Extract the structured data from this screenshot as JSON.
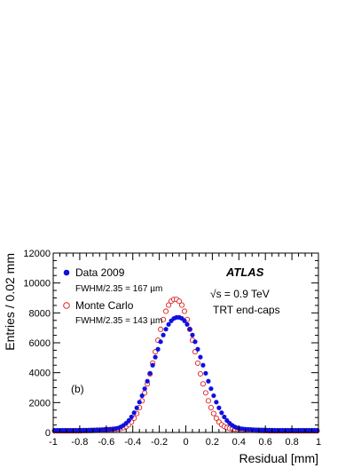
{
  "chart_data": {
    "type": "scatter",
    "title": "",
    "xlabel": "Residual [mm]",
    "ylabel": "Entries / 0.02 mm",
    "xlim": [
      -1,
      1
    ],
    "ylim": [
      0,
      12000
    ],
    "x_ticks": [
      -1,
      -0.8,
      -0.6,
      -0.4,
      -0.2,
      0,
      0.2,
      0.4,
      0.6,
      0.8,
      1
    ],
    "x_tick_labels": [
      "-1",
      "-0.8",
      "-0.6",
      "-0.4",
      "-0.2",
      "0",
      "0.2",
      "0.4",
      "0.6",
      "0.8",
      "1"
    ],
    "y_ticks": [
      0,
      2000,
      4000,
      6000,
      8000,
      10000,
      12000
    ],
    "y_tick_labels": [
      "0",
      "2000",
      "4000",
      "6000",
      "8000",
      "10000",
      "12000"
    ],
    "grid": false,
    "legend_position": "top-left",
    "bin_width": 0.02,
    "series": [
      {
        "name": "Data 2009",
        "annotation": "FWHM/2.35 = 167 µm",
        "marker": "filled-circle",
        "color": "#1010e0",
        "x": [
          -0.99,
          -0.97,
          -0.95,
          -0.93,
          -0.91,
          -0.89,
          -0.87,
          -0.85,
          -0.83,
          -0.81,
          -0.79,
          -0.77,
          -0.75,
          -0.73,
          -0.71,
          -0.69,
          -0.67,
          -0.65,
          -0.63,
          -0.61,
          -0.59,
          -0.57,
          -0.55,
          -0.53,
          -0.51,
          -0.49,
          -0.47,
          -0.45,
          -0.43,
          -0.41,
          -0.39,
          -0.37,
          -0.35,
          -0.33,
          -0.31,
          -0.29,
          -0.27,
          -0.25,
          -0.23,
          -0.21,
          -0.19,
          -0.17,
          -0.15,
          -0.13,
          -0.11,
          -0.09,
          -0.07,
          -0.05,
          -0.03,
          -0.01,
          0.01,
          0.03,
          0.05,
          0.07,
          0.09,
          0.11,
          0.13,
          0.15,
          0.17,
          0.19,
          0.21,
          0.23,
          0.25,
          0.27,
          0.29,
          0.31,
          0.33,
          0.35,
          0.37,
          0.39,
          0.41,
          0.43,
          0.45,
          0.47,
          0.49,
          0.51,
          0.53,
          0.55,
          0.57,
          0.59,
          0.61,
          0.63,
          0.65,
          0.67,
          0.69,
          0.71,
          0.73,
          0.75,
          0.77,
          0.79,
          0.81,
          0.83,
          0.85,
          0.87,
          0.89,
          0.91,
          0.93,
          0.95,
          0.97,
          0.99
        ],
        "y": [
          150,
          150,
          150,
          150,
          150,
          150,
          150,
          150,
          150,
          150,
          150,
          160,
          160,
          160,
          170,
          170,
          180,
          180,
          190,
          200,
          210,
          220,
          240,
          260,
          300,
          370,
          480,
          620,
          800,
          1040,
          1320,
          1650,
          2030,
          2460,
          2930,
          3430,
          3960,
          4500,
          5040,
          5570,
          6070,
          6520,
          6910,
          7230,
          7470,
          7630,
          7700,
          7700,
          7630,
          7470,
          7230,
          6910,
          6520,
          6070,
          5570,
          5040,
          4500,
          3960,
          3430,
          2930,
          2460,
          2030,
          1650,
          1320,
          1040,
          800,
          620,
          480,
          370,
          300,
          260,
          240,
          220,
          210,
          200,
          190,
          180,
          180,
          170,
          170,
          160,
          160,
          160,
          150,
          150,
          150,
          150,
          150,
          150,
          150,
          150,
          150,
          150,
          150,
          150,
          150,
          150,
          150,
          150,
          150
        ]
      },
      {
        "name": "Monte Carlo",
        "annotation": "FWHM/2.35 = 143 µm",
        "marker": "open-circle",
        "color": "#e02020",
        "x": [
          -0.99,
          -0.97,
          -0.95,
          -0.93,
          -0.91,
          -0.89,
          -0.87,
          -0.85,
          -0.83,
          -0.81,
          -0.79,
          -0.77,
          -0.75,
          -0.73,
          -0.71,
          -0.69,
          -0.67,
          -0.65,
          -0.63,
          -0.61,
          -0.59,
          -0.57,
          -0.55,
          -0.53,
          -0.51,
          -0.49,
          -0.47,
          -0.45,
          -0.43,
          -0.41,
          -0.39,
          -0.37,
          -0.35,
          -0.33,
          -0.31,
          -0.29,
          -0.27,
          -0.25,
          -0.23,
          -0.21,
          -0.19,
          -0.17,
          -0.15,
          -0.13,
          -0.11,
          -0.09,
          -0.07,
          -0.05,
          -0.03,
          -0.01,
          0.01,
          0.03,
          0.05,
          0.07,
          0.09,
          0.11,
          0.13,
          0.15,
          0.17,
          0.19,
          0.21,
          0.23,
          0.25,
          0.27,
          0.29,
          0.31,
          0.33,
          0.35,
          0.37,
          0.39,
          0.41,
          0.43,
          0.45,
          0.47,
          0.49,
          0.51,
          0.53,
          0.55,
          0.57,
          0.59,
          0.61,
          0.63,
          0.65,
          0.67,
          0.69,
          0.71,
          0.73,
          0.75,
          0.77,
          0.79,
          0.81,
          0.83,
          0.85,
          0.87,
          0.89,
          0.91,
          0.93,
          0.95,
          0.97,
          0.99
        ],
        "y": [
          110,
          110,
          110,
          110,
          110,
          110,
          110,
          110,
          110,
          110,
          110,
          120,
          120,
          130,
          130,
          140,
          150,
          160,
          170,
          180,
          190,
          200,
          210,
          220,
          240,
          270,
          320,
          400,
          520,
          700,
          950,
          1270,
          1660,
          2120,
          2650,
          3250,
          3920,
          4640,
          5400,
          6170,
          6900,
          7560,
          8110,
          8520,
          8780,
          8900,
          8900,
          8780,
          8520,
          8110,
          7560,
          6900,
          6170,
          5400,
          4640,
          3920,
          3250,
          2650,
          2120,
          1660,
          1270,
          950,
          700,
          520,
          400,
          320,
          270,
          240,
          220,
          210,
          200,
          190,
          180,
          170,
          160,
          150,
          140,
          130,
          130,
          120,
          120,
          110,
          110,
          110,
          110,
          110,
          110,
          110,
          110,
          110,
          110,
          110,
          110,
          110,
          110,
          110,
          110,
          110,
          110,
          110
        ]
      }
    ],
    "annotations": [
      {
        "id": "atlas",
        "text": "ATLAS"
      },
      {
        "id": "energy",
        "text": "√s = 0.9 TeV"
      },
      {
        "id": "region",
        "text": "TRT end-caps"
      },
      {
        "id": "panel",
        "text": "(b)"
      }
    ]
  }
}
